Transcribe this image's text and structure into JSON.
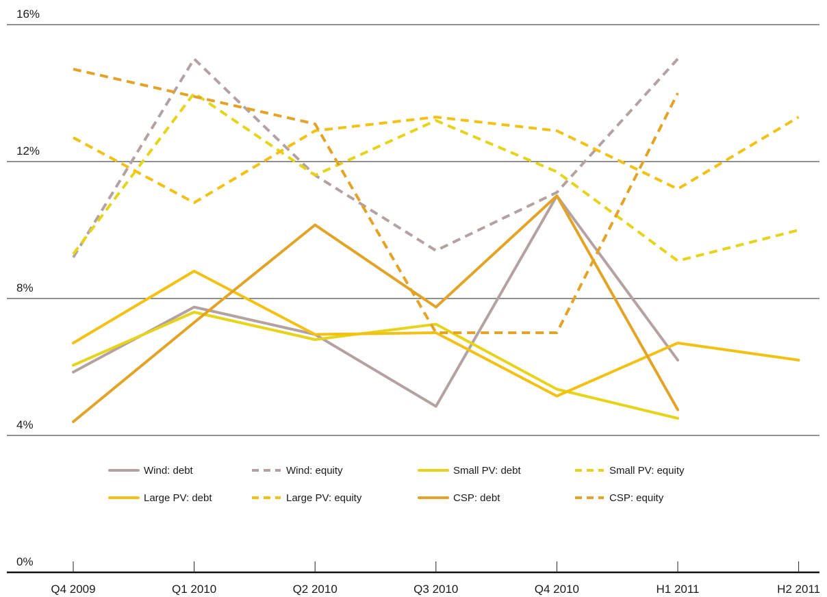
{
  "chart_data": {
    "type": "line",
    "categories": [
      "Q4 2009",
      "Q1 2010",
      "Q2 2010",
      "Q3 2010",
      "Q4 2010",
      "H1 2011",
      "H2 2011"
    ],
    "y_ticks": [
      "0%",
      "4%",
      "8%",
      "12%",
      "16%"
    ],
    "y_tick_values": [
      0,
      4,
      8,
      12,
      16
    ],
    "ylim": [
      0,
      16
    ],
    "grid": true,
    "legend_position": "bottom",
    "series": [
      {
        "name": "Wind: debt",
        "color": "#b3a2a1",
        "dashed": false,
        "values": [
          5.85,
          7.75,
          6.95,
          4.85,
          11.0,
          6.2,
          null
        ]
      },
      {
        "name": "Wind: equity",
        "color": "#b3a2a1",
        "dashed": true,
        "values": [
          9.2,
          15.0,
          11.6,
          9.4,
          11.1,
          15.0,
          null
        ]
      },
      {
        "name": "Small PV: debt",
        "color": "#e6d41a",
        "dashed": false,
        "values": [
          6.05,
          7.6,
          6.8,
          7.25,
          5.35,
          4.5,
          null
        ]
      },
      {
        "name": "Small PV: equity",
        "color": "#e6d41a",
        "dashed": true,
        "values": [
          9.3,
          14.0,
          11.6,
          13.2,
          11.7,
          9.1,
          10.0
        ]
      },
      {
        "name": "Large PV: debt",
        "color": "#f2c114",
        "dashed": false,
        "values": [
          6.7,
          8.8,
          6.95,
          7.0,
          5.15,
          6.7,
          6.2
        ]
      },
      {
        "name": "Large PV: equity",
        "color": "#f2c114",
        "dashed": true,
        "values": [
          12.7,
          10.8,
          12.9,
          13.3,
          12.9,
          11.2,
          13.3
        ]
      },
      {
        "name": "CSP: debt",
        "color": "#e2a326",
        "dashed": false,
        "values": [
          4.4,
          7.3,
          10.15,
          7.75,
          11.0,
          4.75,
          null
        ]
      },
      {
        "name": "CSP: equity",
        "color": "#e2a326",
        "dashed": true,
        "values": [
          14.7,
          13.9,
          13.1,
          7.0,
          7.0,
          14.0,
          null
        ]
      }
    ]
  }
}
